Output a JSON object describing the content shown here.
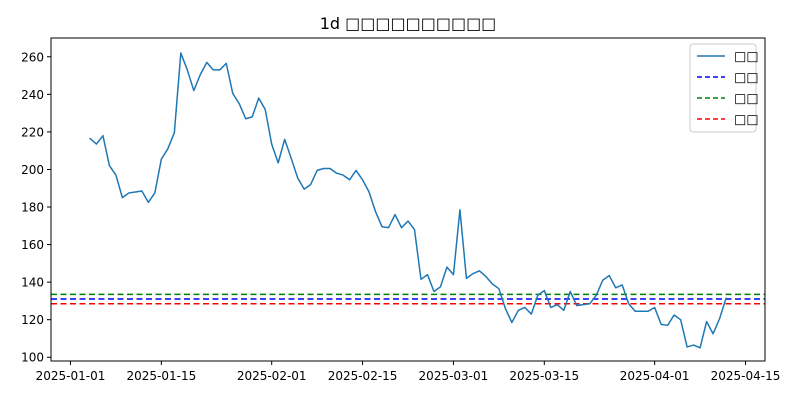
{
  "chart_data": {
    "type": "line",
    "title": "1d □□□□□□□□□□",
    "xlabel": "",
    "ylabel": "",
    "ylim": [
      98,
      270
    ],
    "xlim": [
      "2024-12-29",
      "2025-04-18"
    ],
    "grid": false,
    "legend_position": "top-right",
    "x_ticks": [
      "2025-01-01",
      "2025-01-15",
      "2025-02-01",
      "2025-02-15",
      "2025-03-01",
      "2025-03-15",
      "2025-04-01",
      "2025-04-15"
    ],
    "y_ticks": [
      100,
      120,
      140,
      160,
      180,
      200,
      220,
      240,
      260
    ],
    "series": [
      {
        "name": "□□",
        "color": "#1f77b4",
        "style": "solid",
        "x": [
          "2025-01-04",
          "2025-01-05",
          "2025-01-06",
          "2025-01-07",
          "2025-01-08",
          "2025-01-09",
          "2025-01-10",
          "2025-01-11",
          "2025-01-12",
          "2025-01-13",
          "2025-01-14",
          "2025-01-15",
          "2025-01-16",
          "2025-01-17",
          "2025-01-18",
          "2025-01-19",
          "2025-01-20",
          "2025-01-21",
          "2025-01-22",
          "2025-01-23",
          "2025-01-24",
          "2025-01-25",
          "2025-01-26",
          "2025-01-27",
          "2025-01-28",
          "2025-01-29",
          "2025-01-30",
          "2025-01-31",
          "2025-02-01",
          "2025-02-02",
          "2025-02-03",
          "2025-02-04",
          "2025-02-05",
          "2025-02-06",
          "2025-02-07",
          "2025-02-08",
          "2025-02-09",
          "2025-02-10",
          "2025-02-11",
          "2025-02-12",
          "2025-02-13",
          "2025-02-14",
          "2025-02-15",
          "2025-02-16",
          "2025-02-17",
          "2025-02-18",
          "2025-02-19",
          "2025-02-20",
          "2025-02-21",
          "2025-02-22",
          "2025-02-23",
          "2025-02-24",
          "2025-02-25",
          "2025-02-26",
          "2025-02-27",
          "2025-02-28",
          "2025-03-01",
          "2025-03-02",
          "2025-03-03",
          "2025-03-04",
          "2025-03-05",
          "2025-03-06",
          "2025-03-07",
          "2025-03-08",
          "2025-03-09",
          "2025-03-10",
          "2025-03-11",
          "2025-03-12",
          "2025-03-13",
          "2025-03-14",
          "2025-03-15",
          "2025-03-16",
          "2025-03-17",
          "2025-03-18",
          "2025-03-19",
          "2025-03-20",
          "2025-03-21",
          "2025-03-22",
          "2025-03-23",
          "2025-03-24",
          "2025-03-25",
          "2025-03-26",
          "2025-03-27",
          "2025-03-28",
          "2025-03-29",
          "2025-03-30",
          "2025-03-31",
          "2025-04-01",
          "2025-04-02",
          "2025-04-03",
          "2025-04-04",
          "2025-04-05",
          "2025-04-06",
          "2025-04-07",
          "2025-04-08",
          "2025-04-09",
          "2025-04-10",
          "2025-04-11",
          "2025-04-12"
        ],
        "values": [
          216.5,
          213.5,
          218.0,
          202.0,
          197.0,
          185.0,
          187.5,
          188.0,
          188.5,
          182.5,
          187.5,
          205.5,
          211.0,
          219.5,
          262.0,
          253.0,
          242.0,
          250.5,
          257.0,
          253.0,
          253.0,
          256.5,
          240.5,
          235.0,
          227.0,
          228.0,
          238.0,
          232.0,
          213.5,
          203.5,
          216.0,
          206.0,
          195.5,
          189.5,
          192.0,
          199.5,
          200.5,
          200.5,
          198.0,
          197.0,
          194.5,
          199.5,
          194.5,
          188.0,
          177.5,
          169.5,
          169.0,
          176.0,
          169.0,
          172.5,
          168.0,
          141.5,
          144.0,
          135.0,
          137.5,
          148.0,
          144.0,
          178.5,
          142.0,
          144.5,
          146.0,
          143.0,
          139.0,
          136.5,
          126.0,
          118.5,
          125.0,
          126.5,
          123.0,
          133.0,
          135.5,
          126.5,
          128.0,
          125.0,
          135.0,
          127.5,
          128.0,
          128.5,
          133.0,
          141.0,
          143.5,
          137.0,
          138.5,
          128.5,
          124.5,
          124.5,
          124.5,
          126.5,
          117.5,
          117.0,
          122.5,
          120.0,
          105.5,
          106.5,
          105.0,
          119.0,
          112.5,
          120.5,
          131.5
        ]
      },
      {
        "name": "□□",
        "color": "#0000ff",
        "style": "dashed",
        "value": 131.0
      },
      {
        "name": "□□",
        "color": "#008000",
        "style": "dashed",
        "value": 133.5
      },
      {
        "name": "□□",
        "color": "#ff0000",
        "style": "dashed",
        "value": 128.5
      }
    ]
  }
}
